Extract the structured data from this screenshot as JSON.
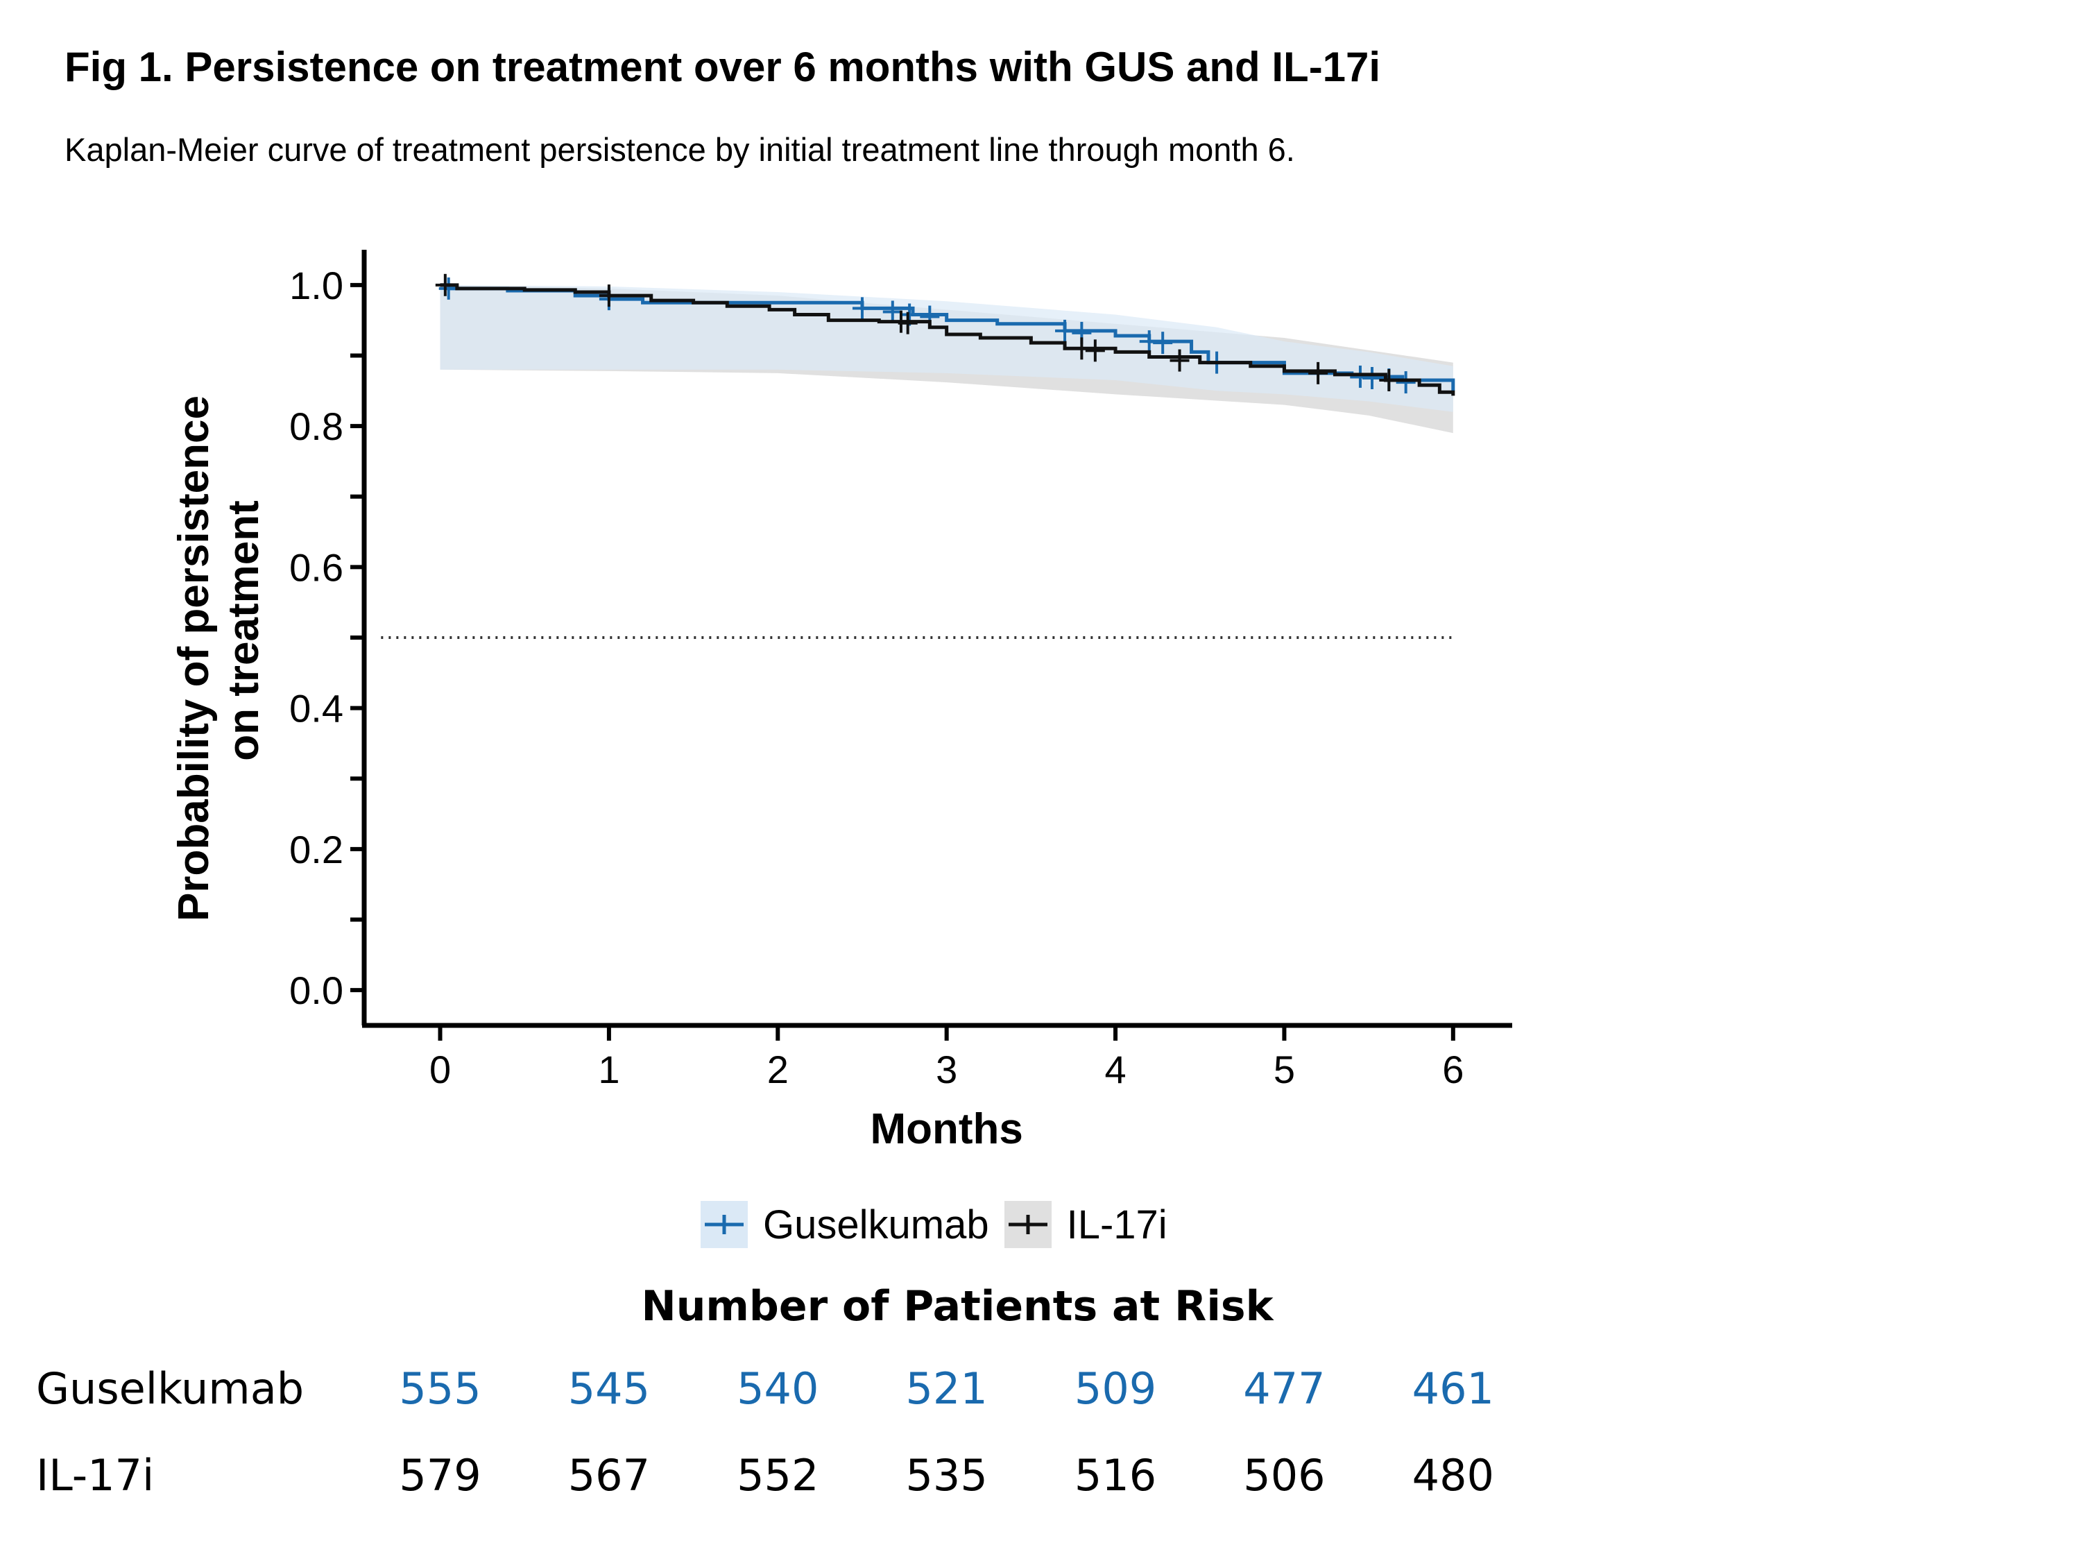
{
  "title": "Fig 1. Persistence on treatment over 6 months with GUS and IL-17i",
  "subtitle": "Kaplan-Meier curve of treatment persistence by initial treatment line through month 6.",
  "colors": {
    "guselkumab": "#1a6aae",
    "il17i": "#111111",
    "gus_ci": "#dbe9f6",
    "il17_ci": "#dadada",
    "overlap_ci": "#d2dae3"
  },
  "chart_data": {
    "type": "line",
    "title": "",
    "xlabel": "Months",
    "ylabel_line1": "Probability of persistence",
    "ylabel_line2": "on treatment",
    "xlim": [
      -0.45,
      6.35
    ],
    "ylim": [
      -0.05,
      1.05
    ],
    "x_ticks": [
      0,
      1,
      2,
      3,
      4,
      5,
      6
    ],
    "y_ticks": [
      0.0,
      0.2,
      0.4,
      0.6,
      0.8,
      1.0
    ],
    "y_tick_labels": [
      "0.0",
      "0.2",
      "0.4",
      "0.6",
      "0.8",
      "1.0"
    ],
    "y_minor_ticks": [
      0.1,
      0.3,
      0.5,
      0.7,
      0.9
    ],
    "reference_line": 0.5,
    "series": [
      {
        "name": "Guselkumab",
        "color": "#1a6aae",
        "steps": [
          [
            0,
            1.0
          ],
          [
            0.05,
            0.995
          ],
          [
            0.4,
            0.992
          ],
          [
            0.8,
            0.985
          ],
          [
            1.0,
            0.98
          ],
          [
            1.2,
            0.975
          ],
          [
            2.5,
            0.967
          ],
          [
            2.8,
            0.958
          ],
          [
            3.0,
            0.95
          ],
          [
            3.3,
            0.945
          ],
          [
            3.7,
            0.935
          ],
          [
            4.0,
            0.928
          ],
          [
            4.2,
            0.92
          ],
          [
            4.45,
            0.905
          ],
          [
            4.55,
            0.89
          ],
          [
            5.0,
            0.875
          ],
          [
            5.4,
            0.87
          ],
          [
            5.7,
            0.865
          ],
          [
            6.0,
            0.85
          ]
        ],
        "censors": [
          [
            0.05,
            0.995
          ],
          [
            1.0,
            0.98
          ],
          [
            2.5,
            0.967
          ],
          [
            2.68,
            0.962
          ],
          [
            2.78,
            0.958
          ],
          [
            2.9,
            0.955
          ],
          [
            3.7,
            0.935
          ],
          [
            3.8,
            0.932
          ],
          [
            4.2,
            0.92
          ],
          [
            4.28,
            0.918
          ],
          [
            4.6,
            0.89
          ],
          [
            5.45,
            0.87
          ],
          [
            5.52,
            0.868
          ],
          [
            5.62,
            0.866
          ],
          [
            5.72,
            0.862
          ]
        ],
        "ci_upper": [
          [
            0,
            1.0
          ],
          [
            1,
            0.998
          ],
          [
            2,
            0.99
          ],
          [
            3,
            0.977
          ],
          [
            4,
            0.958
          ],
          [
            4.6,
            0.94
          ],
          [
            5,
            0.92
          ],
          [
            5.5,
            0.905
          ],
          [
            6,
            0.885
          ]
        ],
        "ci_lower": [
          [
            0,
            0.88
          ],
          [
            1,
            0.88
          ],
          [
            2,
            0.88
          ],
          [
            3,
            0.875
          ],
          [
            4,
            0.865
          ],
          [
            4.6,
            0.85
          ],
          [
            5,
            0.845
          ],
          [
            5.5,
            0.835
          ],
          [
            6,
            0.82
          ]
        ]
      },
      {
        "name": "IL-17i",
        "color": "#111111",
        "steps": [
          [
            0,
            1.0
          ],
          [
            0.1,
            0.995
          ],
          [
            0.5,
            0.993
          ],
          [
            0.8,
            0.99
          ],
          [
            1.0,
            0.985
          ],
          [
            1.25,
            0.978
          ],
          [
            1.5,
            0.975
          ],
          [
            1.7,
            0.97
          ],
          [
            1.95,
            0.965
          ],
          [
            2.1,
            0.958
          ],
          [
            2.3,
            0.95
          ],
          [
            2.6,
            0.948
          ],
          [
            2.9,
            0.94
          ],
          [
            3.0,
            0.93
          ],
          [
            3.2,
            0.925
          ],
          [
            3.5,
            0.918
          ],
          [
            3.7,
            0.91
          ],
          [
            4.0,
            0.905
          ],
          [
            4.2,
            0.898
          ],
          [
            4.5,
            0.89
          ],
          [
            4.8,
            0.885
          ],
          [
            5.0,
            0.878
          ],
          [
            5.3,
            0.873
          ],
          [
            5.6,
            0.865
          ],
          [
            5.8,
            0.858
          ],
          [
            5.92,
            0.848
          ],
          [
            6.0,
            0.843
          ]
        ],
        "censors": [
          [
            0.03,
            1.0
          ],
          [
            1.0,
            0.985
          ],
          [
            2.73,
            0.948
          ],
          [
            2.77,
            0.946
          ],
          [
            3.8,
            0.91
          ],
          [
            3.88,
            0.907
          ],
          [
            4.38,
            0.893
          ],
          [
            5.2,
            0.875
          ],
          [
            5.62,
            0.865
          ]
        ],
        "ci_upper": [
          [
            0,
            1.0
          ],
          [
            1,
            0.995
          ],
          [
            2,
            0.985
          ],
          [
            3,
            0.965
          ],
          [
            4,
            0.945
          ],
          [
            5,
            0.925
          ],
          [
            6,
            0.89
          ]
        ],
        "ci_lower": [
          [
            0,
            0.88
          ],
          [
            1,
            0.878
          ],
          [
            2,
            0.875
          ],
          [
            3,
            0.862
          ],
          [
            4,
            0.845
          ],
          [
            5,
            0.83
          ],
          [
            5.5,
            0.815
          ],
          [
            6,
            0.79
          ]
        ]
      }
    ]
  },
  "legend": [
    {
      "label": "Guselkumab",
      "color": "#1a6aae",
      "bg": "#dbe9f6"
    },
    {
      "label": "IL-17i",
      "color": "#111111",
      "bg": "#e0e0e0"
    }
  ],
  "risk_table": {
    "title": "Number of Patients at Risk",
    "rows": [
      {
        "label": "Guselkumab",
        "color": "#1a6aae",
        "values": [
          "555",
          "545",
          "540",
          "521",
          "509",
          "477",
          "461"
        ]
      },
      {
        "label": "IL-17i",
        "color": "#000000",
        "values": [
          "579",
          "567",
          "552",
          "535",
          "516",
          "506",
          "480"
        ]
      }
    ]
  }
}
